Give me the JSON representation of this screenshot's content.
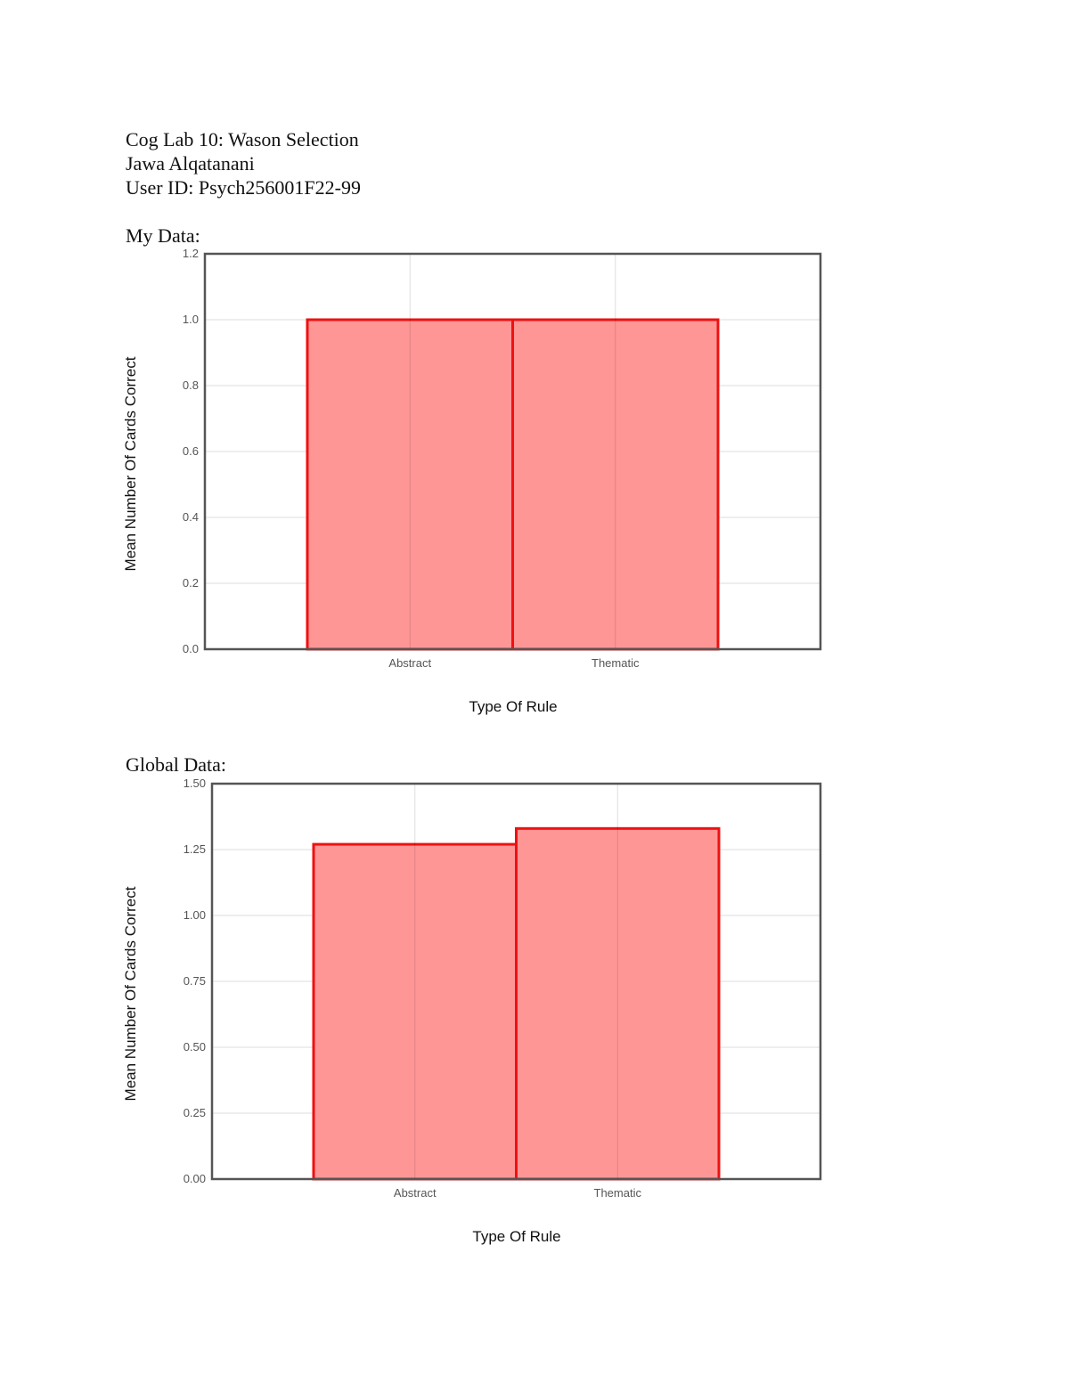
{
  "document": {
    "title_line": "Cog Lab 10: Wason Selection",
    "author_line": "Jawa Alqatanani",
    "user_id_line": "User ID: Psych256001F22-99",
    "my_data_label": "My Data:",
    "global_data_label": "Global Data:"
  },
  "colors": {
    "bar_fill": "#ff9696",
    "bar_stroke": "#ee1111",
    "frame": "#555555",
    "grid": "#dddddd"
  },
  "chart_data": [
    {
      "type": "bar",
      "categories": [
        "Abstract",
        "Thematic"
      ],
      "values": [
        1.0,
        1.0
      ],
      "xlabel": "Type Of Rule",
      "ylabel": "Mean Number Of Cards Correct",
      "ylim": [
        0,
        1.2
      ],
      "yticks": [
        "0.0",
        "0.2",
        "0.4",
        "0.6",
        "0.8",
        "1.0",
        "1.2"
      ],
      "grid": true
    },
    {
      "type": "bar",
      "categories": [
        "Abstract",
        "Thematic"
      ],
      "values": [
        1.27,
        1.33
      ],
      "xlabel": "Type Of Rule",
      "ylabel": "Mean Number Of Cards Correct",
      "ylim": [
        0,
        1.5
      ],
      "yticks": [
        "0.00",
        "0.25",
        "0.50",
        "0.75",
        "1.00",
        "1.25",
        "1.50"
      ],
      "grid": true
    }
  ]
}
